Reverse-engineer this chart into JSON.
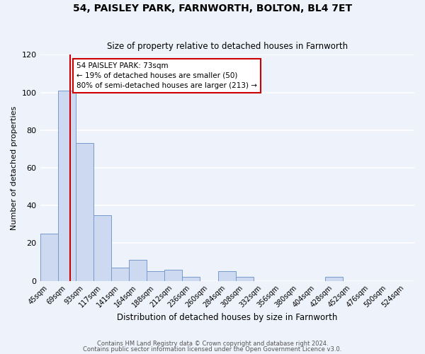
{
  "title": "54, PAISLEY PARK, FARNWORTH, BOLTON, BL4 7ET",
  "subtitle": "Size of property relative to detached houses in Farnworth",
  "xlabel": "Distribution of detached houses by size in Farnworth",
  "ylabel": "Number of detached properties",
  "bin_centers": [
    45,
    69,
    93,
    117,
    141,
    164,
    188,
    212,
    236,
    260,
    284,
    308,
    332,
    356,
    380,
    404,
    428,
    452,
    476,
    500,
    524
  ],
  "bin_labels": [
    "45sqm",
    "69sqm",
    "93sqm",
    "117sqm",
    "141sqm",
    "164sqm",
    "188sqm",
    "212sqm",
    "236sqm",
    "260sqm",
    "284sqm",
    "308sqm",
    "332sqm",
    "356sqm",
    "380sqm",
    "404sqm",
    "428sqm",
    "452sqm",
    "476sqm",
    "500sqm",
    "524sqm"
  ],
  "counts": [
    25,
    101,
    73,
    35,
    7,
    11,
    5,
    6,
    2,
    0,
    5,
    2,
    0,
    0,
    0,
    0,
    2,
    0,
    0,
    0,
    0
  ],
  "bar_color": "#ccd9f0",
  "bar_edge_color": "#7799cc",
  "property_line_x": 73,
  "property_line_color": "#cc0000",
  "annotation_text": "54 PAISLEY PARK: 73sqm\n← 19% of detached houses are smaller (50)\n80% of semi-detached houses are larger (213) →",
  "annotation_box_color": "#ffffff",
  "annotation_box_edge_color": "#cc0000",
  "ylim": [
    0,
    120
  ],
  "yticks": [
    0,
    20,
    40,
    60,
    80,
    100,
    120
  ],
  "background_color": "#eef2fa",
  "grid_color": "#ffffff",
  "footer_line1": "Contains HM Land Registry data © Crown copyright and database right 2024.",
  "footer_line2": "Contains public sector information licensed under the Open Government Licence v3.0."
}
